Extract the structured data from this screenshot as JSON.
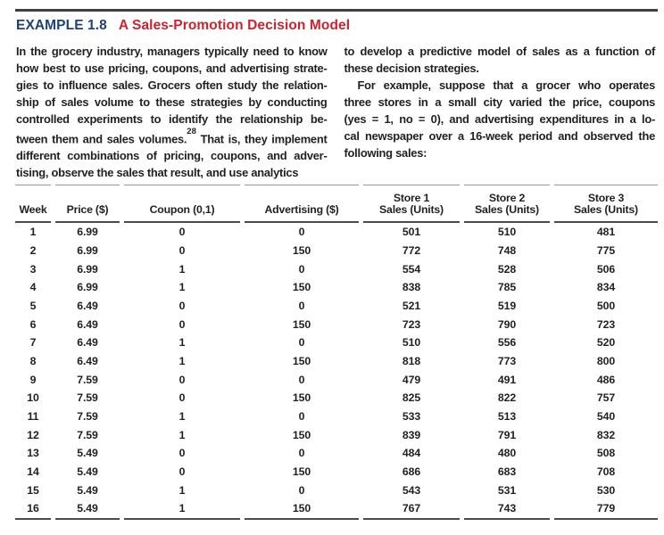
{
  "colors": {
    "example_label": "#1c4378",
    "example_title": "#ce222e",
    "body_text": "#231f20",
    "rule_dark": "#4b4b4b",
    "rule_light": "#979797",
    "top_rule": "#404040"
  },
  "header": {
    "example_label": "EXAMPLE 1.8",
    "example_title": "A Sales-Promotion Decision Model"
  },
  "intro": {
    "left": {
      "l1": "In the grocery industry, managers typically need to know",
      "l2": "how best to use pricing, coupons, and advertising strate-",
      "l3": "gies to influence sales. Grocers often study the relation-",
      "l4": "ship of sales volume to these strategies by conducting",
      "l5": "controlled experiments to identify the relationship be-",
      "l6_pre": "tween them and sales volumes.",
      "l6_sup": "28",
      "l6_post": " That is, they implement",
      "l7": "different combinations of pricing, coupons, and adver-",
      "l8": "tising, observe the sales that result, and use analytics"
    },
    "right": {
      "l1": "to develop a predictive model of sales as a function of",
      "l2": "these decision strategies.",
      "l3": "For example, suppose that a grocer who operates",
      "l4": "three stores in a small city varied the price, coupons",
      "l5": "(yes = 1, no = 0), and advertising expenditures in a lo-",
      "l6": "cal newspaper over a 16-week period and observed the",
      "l7": "following sales:"
    }
  },
  "table": {
    "headers": {
      "week": "Week",
      "price": "Price ($)",
      "coupon": "Coupon (0,1)",
      "advertising": "Advertising ($)",
      "store1_line1": "Store 1",
      "store1_line2": "Sales (Units)",
      "store2_line1": "Store 2",
      "store2_line2": "Sales (Units)",
      "store3_line1": "Store 3",
      "store3_line2": "Sales (Units)"
    },
    "rows": [
      [
        "1",
        "6.99",
        "0",
        "0",
        "501",
        "510",
        "481"
      ],
      [
        "2",
        "6.99",
        "0",
        "150",
        "772",
        "748",
        "775"
      ],
      [
        "3",
        "6.99",
        "1",
        "0",
        "554",
        "528",
        "506"
      ],
      [
        "4",
        "6.99",
        "1",
        "150",
        "838",
        "785",
        "834"
      ],
      [
        "5",
        "6.49",
        "0",
        "0",
        "521",
        "519",
        "500"
      ],
      [
        "6",
        "6.49",
        "0",
        "150",
        "723",
        "790",
        "723"
      ],
      [
        "7",
        "6.49",
        "1",
        "0",
        "510",
        "556",
        "520"
      ],
      [
        "8",
        "6.49",
        "1",
        "150",
        "818",
        "773",
        "800"
      ],
      [
        "9",
        "7.59",
        "0",
        "0",
        "479",
        "491",
        "486"
      ],
      [
        "10",
        "7.59",
        "0",
        "150",
        "825",
        "822",
        "757"
      ],
      [
        "11",
        "7.59",
        "1",
        "0",
        "533",
        "513",
        "540"
      ],
      [
        "12",
        "7.59",
        "1",
        "150",
        "839",
        "791",
        "832"
      ],
      [
        "13",
        "5.49",
        "0",
        "0",
        "484",
        "480",
        "508"
      ],
      [
        "14",
        "5.49",
        "0",
        "150",
        "686",
        "683",
        "708"
      ],
      [
        "15",
        "5.49",
        "1",
        "0",
        "543",
        "531",
        "530"
      ],
      [
        "16",
        "5.49",
        "1",
        "150",
        "767",
        "743",
        "779"
      ]
    ]
  }
}
